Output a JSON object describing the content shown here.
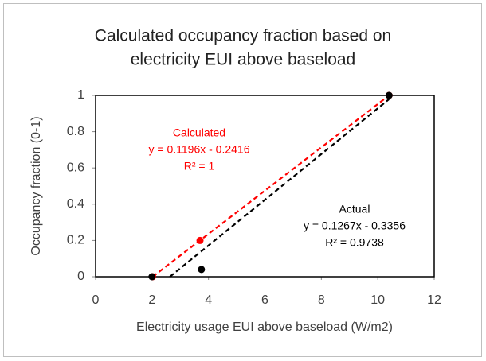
{
  "chart_data": {
    "type": "scatter",
    "title": [
      "Calculated occupancy fraction based on",
      "electricity EUI above baseload"
    ],
    "x_label": "Electricity usage EUI above baseload (W/m2)",
    "y_label": "Occupancy fraction (0-1)",
    "xlim": [
      0,
      12
    ],
    "xticks": [
      0,
      2,
      4,
      6,
      8,
      10,
      12
    ],
    "ylim": [
      0,
      1
    ],
    "yticks": [
      0,
      0.2,
      0.4,
      0.6,
      0.8,
      1
    ],
    "trendline": true,
    "series": [
      {
        "name": "Calculated",
        "color": "#ff0000",
        "x": [
          2.02,
          3.7,
          10.4
        ],
        "values": [
          0,
          0.2,
          1
        ],
        "equation": "y = 0.1196x - 0.2416",
        "r2": "R² = 1"
      },
      {
        "name": "Actual",
        "color": "#000000",
        "x": [
          2,
          3.75,
          10.4
        ],
        "values": [
          0,
          0.04,
          1
        ],
        "equation": "y = 0.1267x - 0.3356",
        "r2": "R² = 0.9738"
      }
    ]
  }
}
